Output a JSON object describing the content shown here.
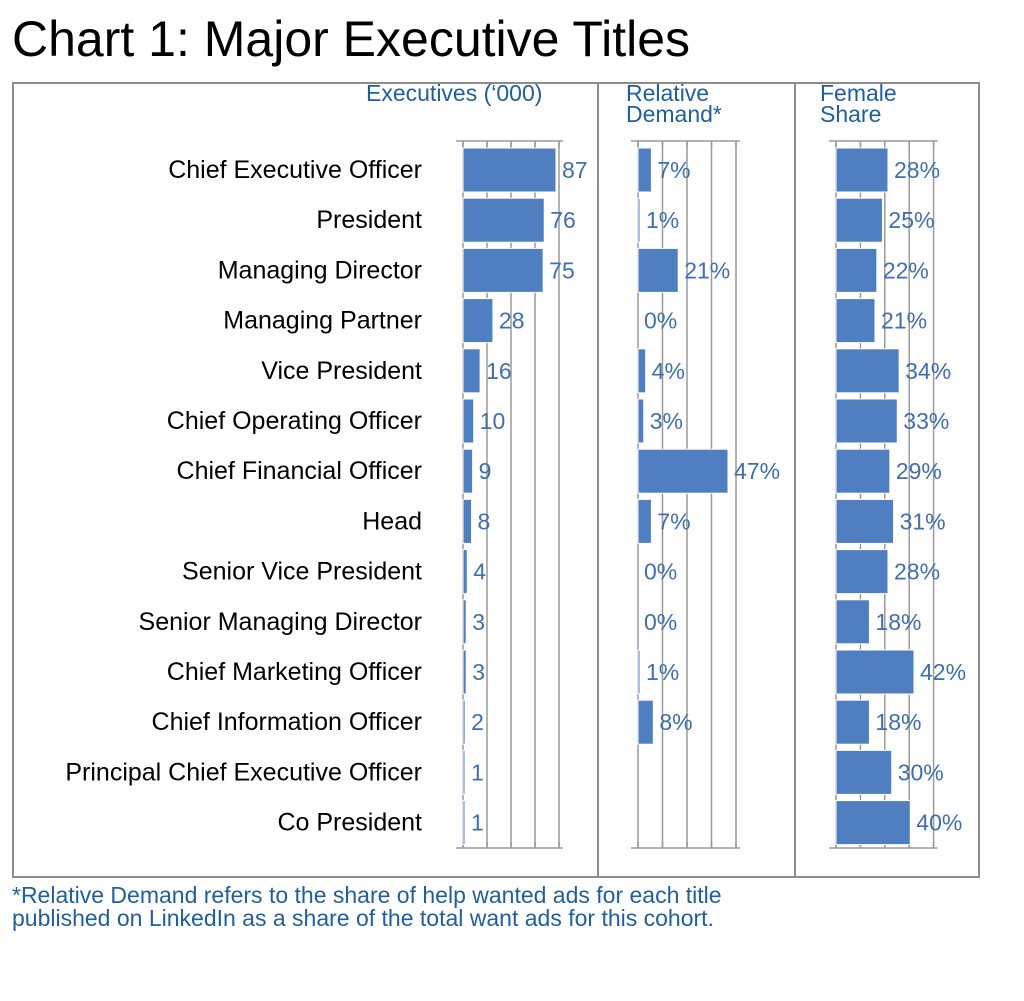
{
  "title": "Chart 1: Major Executive Titles",
  "footnote": {
    "line1": "*Relative Demand refers to the share of help wanted ads for each title",
    "line2": "published on LinkedIn as a share of the total want ads for this cohort."
  },
  "colors": {
    "bar": "#4f7fc0",
    "header_text": "#1f5f9e",
    "value_text": "#3f6fae",
    "frame": "#8c8c8c"
  },
  "chart_data": {
    "type": "bar",
    "orientation": "horizontal",
    "categories": [
      "Chief Executive Officer",
      "President",
      "Managing Director",
      "Managing Partner",
      "Vice President",
      "Chief Operating Officer",
      "Chief Financial Officer",
      "Head",
      "Senior Vice President",
      "Senior Managing Director",
      "Chief Marketing Officer",
      "Chief Information Officer",
      "Principal Chief Executive Officer",
      "Co President"
    ],
    "panels": [
      {
        "id": "executives",
        "header": [
          "Executives (‘000)"
        ],
        "values": [
          87,
          76,
          75,
          28,
          16,
          10,
          9,
          8,
          4,
          3,
          3,
          2,
          1,
          1
        ],
        "labels": [
          "87",
          "76",
          "75",
          "28",
          "16",
          "10",
          "9",
          "8",
          "4",
          "3",
          "3",
          "2",
          "1",
          "1"
        ],
        "xlim": [
          0,
          100
        ],
        "grid": true
      },
      {
        "id": "relative-demand",
        "header": [
          "Relative",
          "Demand*"
        ],
        "values": [
          7,
          1,
          21,
          0,
          4,
          3,
          47,
          7,
          0,
          0,
          1,
          8,
          null,
          null
        ],
        "labels": [
          "7%",
          "1%",
          "21%",
          "0%",
          "4%",
          "3%",
          "47%",
          "7%",
          "0%",
          "0%",
          "1%",
          "8%",
          "",
          ""
        ],
        "xlim": [
          0,
          100
        ],
        "grid": true
      },
      {
        "id": "female-share",
        "header": [
          "Female",
          "Share"
        ],
        "values": [
          28,
          25,
          22,
          21,
          34,
          33,
          29,
          31,
          28,
          18,
          42,
          18,
          30,
          40
        ],
        "labels": [
          "28%",
          "25%",
          "22%",
          "21%",
          "34%",
          "33%",
          "29%",
          "31%",
          "28%",
          "18%",
          "42%",
          "18%",
          "30%",
          "40%"
        ],
        "xlim": [
          0,
          45
        ],
        "grid": true
      }
    ]
  }
}
